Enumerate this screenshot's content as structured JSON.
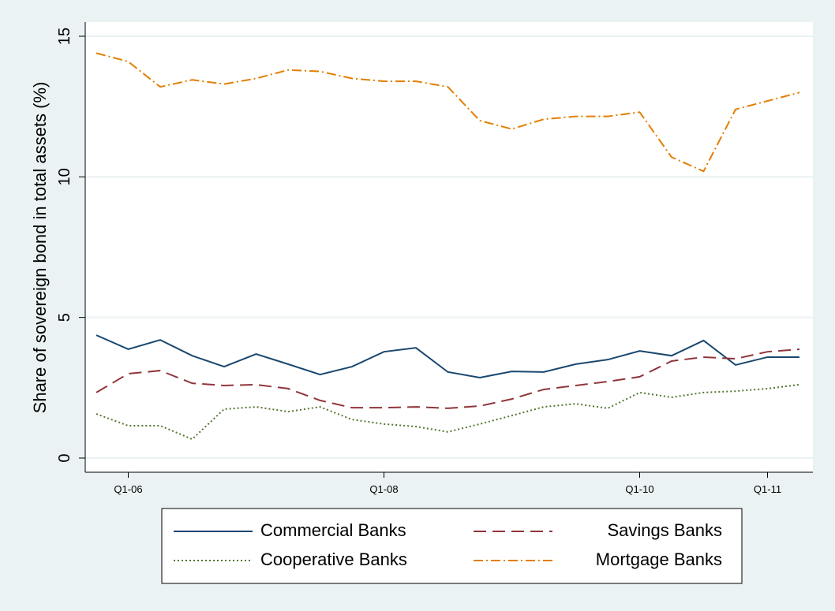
{
  "chart_data": {
    "type": "line",
    "y_label": "Share of sovereign bond in total assets (%)",
    "categories": [
      null,
      "Q1-06",
      null,
      null,
      null,
      null,
      null,
      null,
      null,
      "Q1-08",
      null,
      null,
      null,
      null,
      null,
      null,
      null,
      "Q1-10",
      null,
      null,
      null,
      "Q1-11",
      null
    ],
    "series": [
      {
        "name": "Commercial Banks",
        "color": "#1a476f",
        "dash": "none",
        "values": [
          4.37,
          3.87,
          4.2,
          3.64,
          3.25,
          3.7,
          3.34,
          2.97,
          3.25,
          3.78,
          3.92,
          3.06,
          2.86,
          3.08,
          3.06,
          3.34,
          3.5,
          3.81,
          3.64,
          4.18,
          3.31,
          3.59,
          3.59
        ]
      },
      {
        "name": "Savings Banks",
        "color": "#90353b",
        "dash": "16 8",
        "values": [
          2.33,
          3.0,
          3.11,
          2.66,
          2.58,
          2.61,
          2.47,
          2.05,
          1.79,
          1.79,
          1.82,
          1.77,
          1.85,
          2.1,
          2.44,
          2.58,
          2.72,
          2.89,
          3.45,
          3.59,
          3.53,
          3.78,
          3.87
        ]
      },
      {
        "name": "Cooperative Banks",
        "color": "#55752f",
        "dash": "2 3",
        "values": [
          1.57,
          1.15,
          1.15,
          0.67,
          1.74,
          1.82,
          1.65,
          1.82,
          1.37,
          1.21,
          1.12,
          0.93,
          1.21,
          1.51,
          1.82,
          1.93,
          1.77,
          2.33,
          2.16,
          2.33,
          2.38,
          2.47,
          2.61
        ]
      },
      {
        "name": "Mortgage Banks",
        "color": "#e37e00",
        "dash": "12 4 2 4",
        "values": [
          14.4,
          14.1,
          13.2,
          13.45,
          13.3,
          13.5,
          13.8,
          13.75,
          13.5,
          13.4,
          13.4,
          13.2,
          12.0,
          11.7,
          12.05,
          12.15,
          12.15,
          12.3,
          10.7,
          10.2,
          12.4,
          12.7,
          13.0
        ]
      }
    ],
    "ylim": [
      0,
      15
    ],
    "yticks": [
      0,
      5,
      10,
      15
    ],
    "grid": true,
    "legend": "bottom"
  }
}
